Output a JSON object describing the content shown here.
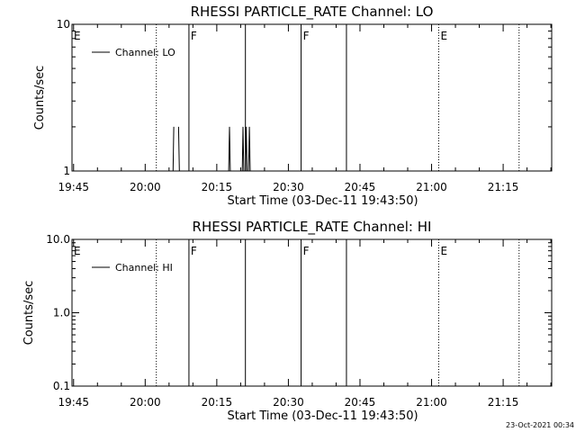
{
  "chart_data": [
    {
      "type": "line",
      "title": "RHESSI PARTICLE_RATE Channel: LO",
      "xlabel": "Start Time (03-Dec-11 19:43:50)",
      "ylabel": "Counts/sec",
      "y_scale": "log",
      "ylim": [
        1,
        10
      ],
      "y_ticks": [
        {
          "value": 1,
          "label": "1"
        },
        {
          "value": 10,
          "label": "10"
        }
      ],
      "xlim": [
        "19:44:40",
        "21:25:10"
      ],
      "x_ticks": [
        "19:45",
        "20:00",
        "20:15",
        "20:30",
        "20:45",
        "21:00",
        "21:15"
      ],
      "legend": {
        "position": "top-left",
        "entries": [
          "Channel: LO"
        ]
      },
      "series": [
        {
          "name": "Channel: LO",
          "points": [
            {
              "x": "20:05:50",
              "y": 1
            },
            {
              "x": "20:06:00",
              "y": 2
            },
            {
              "x": "20:07:00",
              "y": 2
            },
            {
              "x": "20:07:10",
              "y": 1
            },
            {
              "x": "20:17:30",
              "y": 1
            },
            {
              "x": "20:17:40",
              "y": 2
            },
            {
              "x": "20:17:50",
              "y": 1
            },
            {
              "x": "20:20:20",
              "y": 1
            },
            {
              "x": "20:20:30",
              "y": 2
            },
            {
              "x": "20:20:40",
              "y": 1
            },
            {
              "x": "20:21:00",
              "y": 1
            },
            {
              "x": "20:21:10",
              "y": 2
            },
            {
              "x": "20:21:20",
              "y": 1
            },
            {
              "x": "20:21:40",
              "y": 1
            },
            {
              "x": "20:21:50",
              "y": 2
            },
            {
              "x": "20:22:00",
              "y": 1
            }
          ]
        }
      ],
      "vertical_markers": [
        {
          "time": "19:44:40",
          "style": "dotted",
          "label": "E"
        },
        {
          "time": "20:02:20",
          "style": "dotted",
          "label": ""
        },
        {
          "time": "20:09:10",
          "style": "solid",
          "label": "F"
        },
        {
          "time": "20:21:00",
          "style": "solid",
          "label": ""
        },
        {
          "time": "20:32:40",
          "style": "solid",
          "label": "F"
        },
        {
          "time": "20:42:10",
          "style": "solid",
          "label": ""
        },
        {
          "time": "21:01:30",
          "style": "dotted",
          "label": "E"
        },
        {
          "time": "21:18:20",
          "style": "dotted",
          "label": ""
        }
      ]
    },
    {
      "type": "line",
      "title": "RHESSI PARTICLE_RATE Channel: HI",
      "xlabel": "Start Time (03-Dec-11 19:43:50)",
      "ylabel": "Counts/sec",
      "y_scale": "log",
      "ylim": [
        0.1,
        10
      ],
      "y_ticks": [
        {
          "value": 0.1,
          "label": "0.1"
        },
        {
          "value": 1,
          "label": "1.0"
        },
        {
          "value": 10,
          "label": "10.0"
        }
      ],
      "xlim": [
        "19:44:40",
        "21:25:10"
      ],
      "x_ticks": [
        "19:45",
        "20:00",
        "20:15",
        "20:30",
        "20:45",
        "21:00",
        "21:15"
      ],
      "legend": {
        "position": "top-left",
        "entries": [
          "Channel: HI"
        ]
      },
      "series": [
        {
          "name": "Channel: HI",
          "points": []
        }
      ],
      "vertical_markers": [
        {
          "time": "19:44:40",
          "style": "dotted",
          "label": "E"
        },
        {
          "time": "20:02:20",
          "style": "dotted",
          "label": ""
        },
        {
          "time": "20:09:10",
          "style": "solid",
          "label": "F"
        },
        {
          "time": "20:21:00",
          "style": "solid",
          "label": ""
        },
        {
          "time": "20:32:40",
          "style": "solid",
          "label": "F"
        },
        {
          "time": "20:42:10",
          "style": "solid",
          "label": ""
        },
        {
          "time": "21:01:30",
          "style": "dotted",
          "label": "E"
        },
        {
          "time": "21:18:20",
          "style": "dotted",
          "label": ""
        }
      ]
    }
  ],
  "footer": {
    "timestamp": "23-Oct-2021 00:34"
  }
}
